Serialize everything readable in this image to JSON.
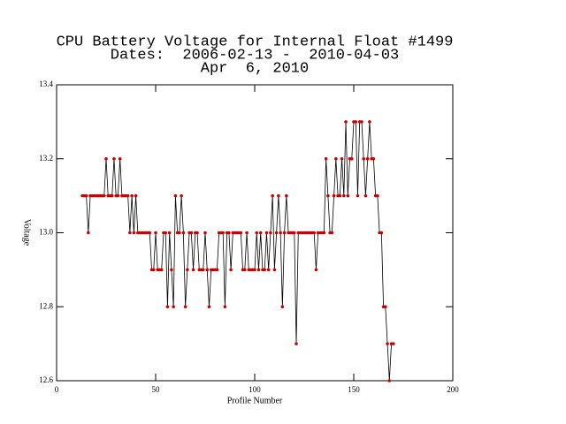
{
  "chart_data": {
    "type": "line",
    "title": [
      "CPU Battery Voltage for Internal Float #1499",
      "Dates:  2006-02-13 -  2010-04-03",
      "Apr  6, 2010"
    ],
    "xlabel": "Profile Number",
    "ylabel": "Voltage",
    "x": [
      13,
      14,
      15,
      16,
      17,
      18,
      19,
      20,
      21,
      22,
      23,
      24,
      25,
      26,
      27,
      28,
      29,
      30,
      31,
      32,
      33,
      34,
      35,
      36,
      37,
      38,
      39,
      40,
      41,
      42,
      43,
      44,
      45,
      46,
      47,
      48,
      49,
      50,
      51,
      52,
      53,
      54,
      55,
      56,
      57,
      58,
      59,
      60,
      61,
      62,
      63,
      64,
      65,
      66,
      67,
      68,
      69,
      70,
      71,
      72,
      73,
      74,
      75,
      76,
      77,
      78,
      79,
      80,
      81,
      82,
      83,
      84,
      85,
      86,
      87,
      88,
      89,
      90,
      91,
      92,
      93,
      94,
      95,
      96,
      97,
      98,
      99,
      100,
      101,
      102,
      103,
      104,
      105,
      106,
      107,
      108,
      109,
      110,
      111,
      112,
      113,
      114,
      115,
      116,
      117,
      118,
      119,
      120,
      121,
      122,
      123,
      124,
      125,
      126,
      127,
      128,
      129,
      130,
      131,
      132,
      133,
      134,
      135,
      136,
      137,
      138,
      139,
      140,
      141,
      142,
      143,
      144,
      145,
      146,
      147,
      148,
      149,
      150,
      151,
      152,
      153,
      154,
      155,
      156,
      157,
      158,
      159,
      160,
      161,
      162,
      163,
      164,
      165,
      166,
      167,
      168,
      169,
      170
    ],
    "values": [
      13.1,
      13.1,
      13.1,
      13.0,
      13.1,
      13.1,
      13.1,
      13.1,
      13.1,
      13.1,
      13.1,
      13.1,
      13.2,
      13.1,
      13.1,
      13.1,
      13.2,
      13.1,
      13.1,
      13.2,
      13.1,
      13.1,
      13.1,
      13.1,
      13.0,
      13.1,
      13.0,
      13.1,
      13.0,
      13.0,
      13.0,
      13.0,
      13.0,
      13.0,
      13.0,
      12.9,
      12.9,
      13.0,
      12.9,
      12.9,
      12.9,
      13.0,
      13.0,
      12.8,
      13.0,
      12.9,
      12.8,
      13.1,
      13.0,
      13.0,
      13.1,
      13.0,
      12.8,
      12.9,
      13.0,
      13.0,
      12.9,
      13.0,
      13.0,
      12.9,
      12.9,
      12.9,
      13.0,
      12.9,
      12.8,
      12.9,
      12.9,
      12.9,
      12.9,
      13.0,
      13.0,
      13.0,
      12.8,
      13.0,
      13.0,
      12.9,
      13.0,
      13.0,
      13.0,
      13.0,
      13.0,
      12.9,
      12.9,
      13.0,
      12.9,
      12.9,
      12.9,
      12.9,
      13.0,
      12.9,
      13.0,
      12.9,
      12.9,
      13.0,
      12.9,
      13.0,
      13.1,
      12.9,
      13.0,
      13.1,
      13.0,
      12.8,
      13.0,
      13.1,
      13.0,
      13.0,
      13.0,
      13.0,
      12.7,
      13.0,
      13.0,
      13.0,
      13.0,
      13.0,
      13.0,
      13.0,
      13.0,
      13.0,
      12.9,
      13.0,
      13.0,
      13.0,
      13.0,
      13.2,
      13.1,
      13.0,
      13.0,
      13.1,
      13.2,
      13.1,
      13.1,
      13.2,
      13.1,
      13.3,
      13.1,
      13.2,
      13.2,
      13.3,
      13.3,
      13.1,
      13.3,
      13.3,
      13.2,
      13.1,
      13.2,
      13.3,
      13.2,
      13.2,
      13.1,
      13.1,
      13.0,
      13.0,
      12.8,
      12.8,
      12.7,
      12.6,
      12.7,
      12.7
    ],
    "line_color": "#000000",
    "marker_color": "#cc0000",
    "xlim": [
      0,
      200
    ],
    "xticks": [
      0,
      50,
      100,
      150,
      200
    ],
    "ylim": [
      12.6,
      13.4
    ],
    "yticks": [
      13.4,
      13.2,
      {
        "value": 13,
        "label": "13.0"
      },
      12.8,
      12.6
    ]
  }
}
